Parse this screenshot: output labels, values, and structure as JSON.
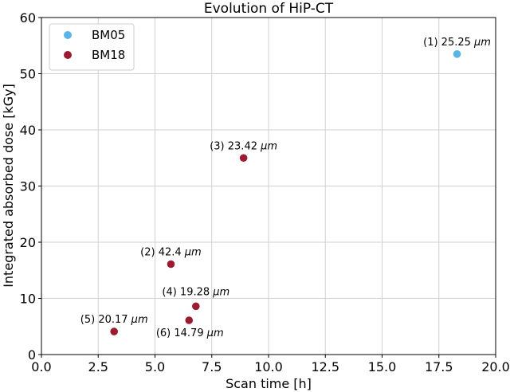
{
  "chart_data": {
    "type": "scatter",
    "title": "Evolution of HiP-CT",
    "xlabel": "Scan time [h]",
    "ylabel": "Integrated absorbed dose [kGy]",
    "xlim": [
      0.0,
      20.0
    ],
    "ylim": [
      0,
      60
    ],
    "x_ticks": [
      "0.0",
      "2.5",
      "5.0",
      "7.5",
      "10.0",
      "12.5",
      "15.0",
      "17.5",
      "20.0"
    ],
    "y_ticks": [
      "0",
      "10",
      "20",
      "30",
      "40",
      "50",
      "60"
    ],
    "grid": true,
    "legend_position": "top-left",
    "series": [
      {
        "name": "BM05",
        "color": "#5ab4e5",
        "points": [
          {
            "x": 18.3,
            "y": 53.5,
            "label": "(1) 25.25",
            "unit": "μm"
          }
        ]
      },
      {
        "name": "BM18",
        "color": "#9b1b30",
        "points": [
          {
            "x": 5.7,
            "y": 16.1,
            "label": "(2) 42.4",
            "unit": "μm"
          },
          {
            "x": 8.9,
            "y": 35.0,
            "label": "(3) 23.42",
            "unit": "μm"
          },
          {
            "x": 6.8,
            "y": 8.6,
            "label": "(4) 19.28",
            "unit": "μm"
          },
          {
            "x": 3.2,
            "y": 4.1,
            "label": "(5) 20.17",
            "unit": "μm"
          },
          {
            "x": 6.5,
            "y": 6.1,
            "label": "(6) 14.79",
            "unit": "μm"
          }
        ]
      }
    ]
  }
}
